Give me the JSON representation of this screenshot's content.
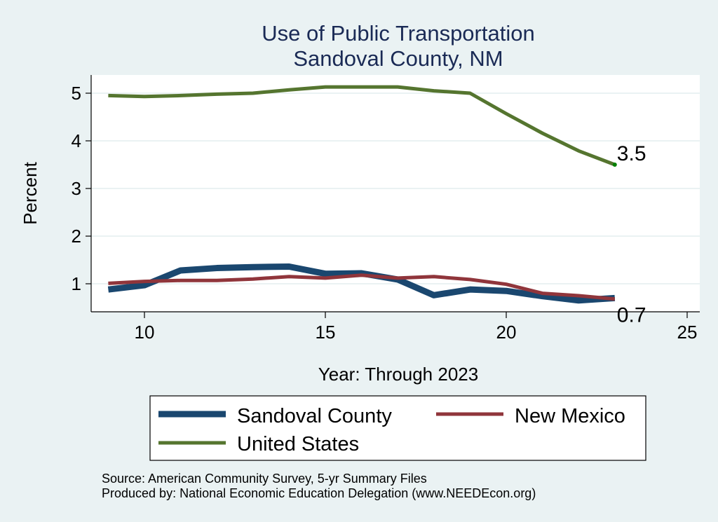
{
  "chart_data": {
    "type": "line",
    "title": "Use of Public Transportation",
    "subtitle": "Sandoval County, NM",
    "xlabel": "Year: Through 2023",
    "ylabel": "Percent",
    "xlim": [
      9,
      25
    ],
    "ylim": [
      0.6,
      5.2
    ],
    "xticks": [
      10,
      15,
      20,
      25
    ],
    "yticks": [
      1,
      2,
      3,
      4,
      5
    ],
    "grid": true,
    "x": [
      9,
      10,
      11,
      12,
      13,
      14,
      15,
      16,
      17,
      18,
      19,
      20,
      21,
      22,
      23
    ],
    "series": [
      {
        "name": "Sandoval County",
        "color": "#1a476f",
        "values": [
          0.88,
          0.97,
          1.28,
          1.33,
          1.35,
          1.36,
          1.21,
          1.22,
          1.09,
          0.76,
          0.88,
          0.85,
          0.74,
          0.65,
          0.7
        ]
      },
      {
        "name": "New Mexico",
        "color": "#90353b",
        "values": [
          1.01,
          1.05,
          1.07,
          1.07,
          1.1,
          1.15,
          1.12,
          1.18,
          1.12,
          1.15,
          1.09,
          0.99,
          0.8,
          0.75,
          0.68
        ]
      },
      {
        "name": "United States",
        "color": "#55752f",
        "values": [
          4.95,
          4.93,
          4.95,
          4.98,
          5.0,
          5.07,
          5.13,
          5.13,
          5.13,
          5.05,
          5.0,
          4.57,
          4.16,
          3.79,
          3.5
        ]
      }
    ],
    "annotations": [
      {
        "text": "3.5",
        "x": 23,
        "y": 3.5
      },
      {
        "text": "0.7",
        "x": 23,
        "y": 0.7
      }
    ],
    "legend": {
      "placement": "bottom",
      "entries": [
        "Sandoval County",
        "New Mexico",
        "United States"
      ]
    },
    "notes": [
      "Source: American Community Survey, 5-yr Summary Files",
      "Produced by: National Economic Education Delegation (www.NEEDEcon.org)"
    ]
  }
}
